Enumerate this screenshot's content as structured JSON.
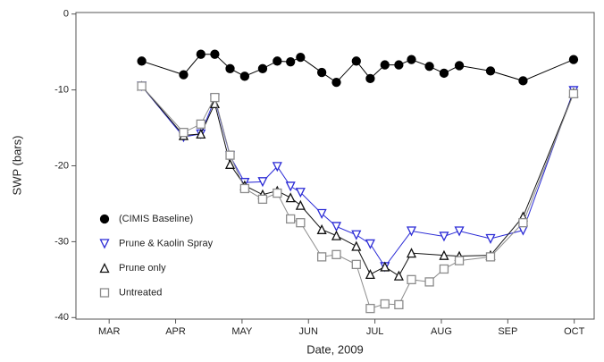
{
  "chart_data": {
    "type": "line",
    "xlabel": "Date, 2009",
    "ylabel": "SWP (bars)",
    "xlim": [
      2.5,
      10.3
    ],
    "xticks": [
      {
        "value": 3,
        "label": "MAR"
      },
      {
        "value": 4,
        "label": "APR"
      },
      {
        "value": 5,
        "label": "MAY"
      },
      {
        "value": 6,
        "label": "JUN"
      },
      {
        "value": 7,
        "label": "JUL"
      },
      {
        "value": 8,
        "label": "AUG"
      },
      {
        "value": 9,
        "label": "SEP"
      },
      {
        "value": 10,
        "label": "OCT"
      }
    ],
    "ylim": [
      -40.2,
      0.2
    ],
    "yticks": [
      0,
      -10,
      -20,
      -30,
      -40
    ],
    "legend": "lower-left",
    "series": [
      {
        "name": "(CIMIS Baseline)",
        "color": "#000000",
        "marker": "circle",
        "filled": true,
        "x": [
          3.49,
          4.12,
          4.38,
          4.59,
          4.82,
          5.04,
          5.31,
          5.53,
          5.73,
          5.88,
          6.2,
          6.42,
          6.72,
          6.93,
          7.15,
          7.36,
          7.55,
          7.82,
          8.04,
          8.27,
          8.74,
          9.23,
          9.99
        ],
        "values": [
          -6.2,
          -8,
          -5.3,
          -5.3,
          -7.2,
          -8.2,
          -7.2,
          -6.2,
          -6.3,
          -5.7,
          -7.7,
          -9,
          -6.2,
          -8.5,
          -6.7,
          -6.7,
          -6,
          -6.9,
          -7.8,
          -6.8,
          -7.5,
          -8.8,
          -6
        ]
      },
      {
        "name": "Prune & Kaolin Spray",
        "color": "#2b2bd6",
        "marker": "triangle-down",
        "filled": false,
        "x": [
          3.49,
          4.12,
          4.38,
          4.59,
          4.82,
          5.04,
          5.31,
          5.53,
          5.73,
          5.88,
          6.2,
          6.42,
          6.72,
          6.93,
          7.15,
          7.55,
          8.04,
          8.27,
          8.74,
          9.23,
          9.99
        ],
        "values": [
          -9.5,
          -16.2,
          -15.8,
          -11.2,
          -18.7,
          -22.2,
          -22.1,
          -20.1,
          -22.7,
          -23.5,
          -26.3,
          -28,
          -29.1,
          -30.3,
          -33.3,
          -28.6,
          -29.3,
          -28.6,
          -29.6,
          -28.5,
          -10.1
        ]
      },
      {
        "name": "Prune only",
        "color": "#111111",
        "marker": "triangle-up",
        "filled": false,
        "x": [
          3.49,
          4.12,
          4.38,
          4.59,
          4.82,
          5.04,
          5.31,
          5.53,
          5.73,
          5.88,
          6.2,
          6.42,
          6.72,
          6.93,
          7.15,
          7.36,
          7.55,
          8.04,
          8.27,
          8.74,
          9.23,
          9.99
        ],
        "values": [
          -9.5,
          -16,
          -15.8,
          -11.8,
          -19.8,
          -22.6,
          -23.8,
          -23.3,
          -24.2,
          -25.2,
          -28.4,
          -29.2,
          -30.6,
          -34.3,
          -33.3,
          -34.5,
          -31.5,
          -31.8,
          -31.9,
          -31.8,
          -26.7,
          -10.4
        ]
      },
      {
        "name": "Untreated",
        "color": "#8c8c8c",
        "marker": "square",
        "filled": false,
        "x": [
          3.49,
          4.12,
          4.38,
          4.59,
          4.82,
          5.04,
          5.31,
          5.53,
          5.73,
          5.88,
          6.2,
          6.42,
          6.72,
          6.93,
          7.15,
          7.36,
          7.55,
          7.82,
          8.04,
          8.27,
          8.74,
          9.23,
          9.99
        ],
        "values": [
          -9.5,
          -15.6,
          -14.5,
          -11,
          -18.6,
          -23,
          -24.4,
          -23.6,
          -27,
          -27.5,
          -32,
          -31.7,
          -33,
          -38.8,
          -38.2,
          -38.3,
          -35,
          -35.3,
          -33.6,
          -32.5,
          -32,
          -27.5,
          -10.5
        ]
      }
    ]
  }
}
